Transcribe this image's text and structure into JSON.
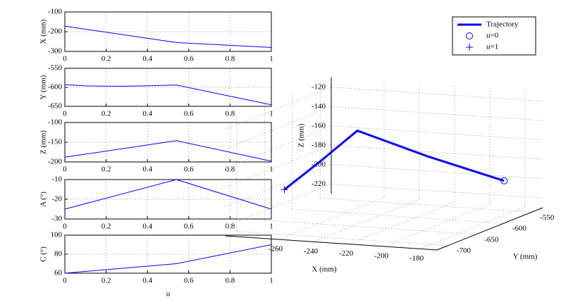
{
  "chart_data": [
    {
      "type": "line",
      "ylabel": "X (mm)",
      "x": [
        0,
        0.54,
        1
      ],
      "values": [
        -172,
        -255,
        -280
      ],
      "color": "#0000ff",
      "xlim": [
        0,
        1
      ],
      "xticks": [
        0,
        0.2,
        0.4,
        0.6,
        0.8,
        1
      ],
      "ylim": [
        -300,
        -100
      ],
      "yticks": [
        -300,
        -200,
        -100
      ],
      "grid": true
    },
    {
      "type": "line",
      "ylabel": "Y (mm)",
      "x": [
        0,
        0.1,
        0.2,
        0.3,
        0.4,
        0.54,
        1
      ],
      "values": [
        -593,
        -596,
        -597,
        -597,
        -596,
        -594,
        -646
      ],
      "color": "#0000ff",
      "xlim": [
        0,
        1
      ],
      "xticks": [
        0,
        0.2,
        0.4,
        0.6,
        0.8,
        1
      ],
      "ylim": [
        -650,
        -550
      ],
      "yticks": [
        -650,
        -600,
        -550
      ],
      "grid": true
    },
    {
      "type": "line",
      "ylabel": "Z (mm)",
      "x": [
        0,
        0.54,
        1
      ],
      "values": [
        -188,
        -146,
        -198
      ],
      "color": "#0000ff",
      "xlim": [
        0,
        1
      ],
      "xticks": [
        0,
        0.2,
        0.4,
        0.6,
        0.8,
        1
      ],
      "ylim": [
        -200,
        -100
      ],
      "yticks": [
        -200,
        -150,
        -100
      ],
      "grid": true
    },
    {
      "type": "line",
      "ylabel": "A (°)",
      "x": [
        0,
        0.54,
        1
      ],
      "values": [
        -25,
        -10,
        -25
      ],
      "color": "#0000ff",
      "xlim": [
        0,
        1
      ],
      "xticks": [
        0,
        0.2,
        0.4,
        0.6,
        0.8,
        1
      ],
      "ylim": [
        -30,
        -10
      ],
      "yticks": [
        -30,
        -20,
        -10
      ],
      "grid": true
    },
    {
      "type": "line",
      "ylabel": "C (°)",
      "xlabel": "u",
      "x": [
        0,
        0.54,
        1
      ],
      "values": [
        60,
        70,
        90
      ],
      "color": "#0000ff",
      "xlim": [
        0,
        1
      ],
      "xticks": [
        0,
        0.2,
        0.4,
        0.6,
        0.8,
        1
      ],
      "ylim": [
        60,
        100
      ],
      "yticks": [
        60,
        80,
        100
      ],
      "grid": true
    },
    {
      "type": "line3d",
      "xlabel": "X (mm)",
      "ylabel": "Y (mm)",
      "zlabel": "Z (mm)",
      "grid": true,
      "legend": "upper right",
      "xlim": [
        -290,
        -170
      ],
      "xticks": [
        -260,
        -240,
        -220,
        -200,
        -180
      ],
      "ylim": [
        -720,
        -530
      ],
      "yticks": [
        -700,
        -650,
        -600,
        -550
      ],
      "zlim": [
        -230,
        -110
      ],
      "zticks": [
        -220,
        -200,
        -180,
        -160,
        -140,
        -120
      ],
      "series": [
        {
          "name": "Trajectory",
          "color": "#0000ff",
          "marker": "line",
          "x": [
            -172,
            -214,
            -255,
            -267,
            -280
          ],
          "y": [
            -593,
            -597,
            -594,
            -620,
            -646
          ],
          "z": [
            -188,
            -167,
            -146,
            -172,
            -198
          ]
        },
        {
          "name": "u=0",
          "color": "#0000ff",
          "marker": "o",
          "x": [
            -172
          ],
          "y": [
            -593
          ],
          "z": [
            -188
          ]
        },
        {
          "name": "u=1",
          "color": "#0000ff",
          "marker": "+",
          "x": [
            -280
          ],
          "y": [
            -646
          ],
          "z": [
            -198
          ]
        }
      ]
    }
  ]
}
